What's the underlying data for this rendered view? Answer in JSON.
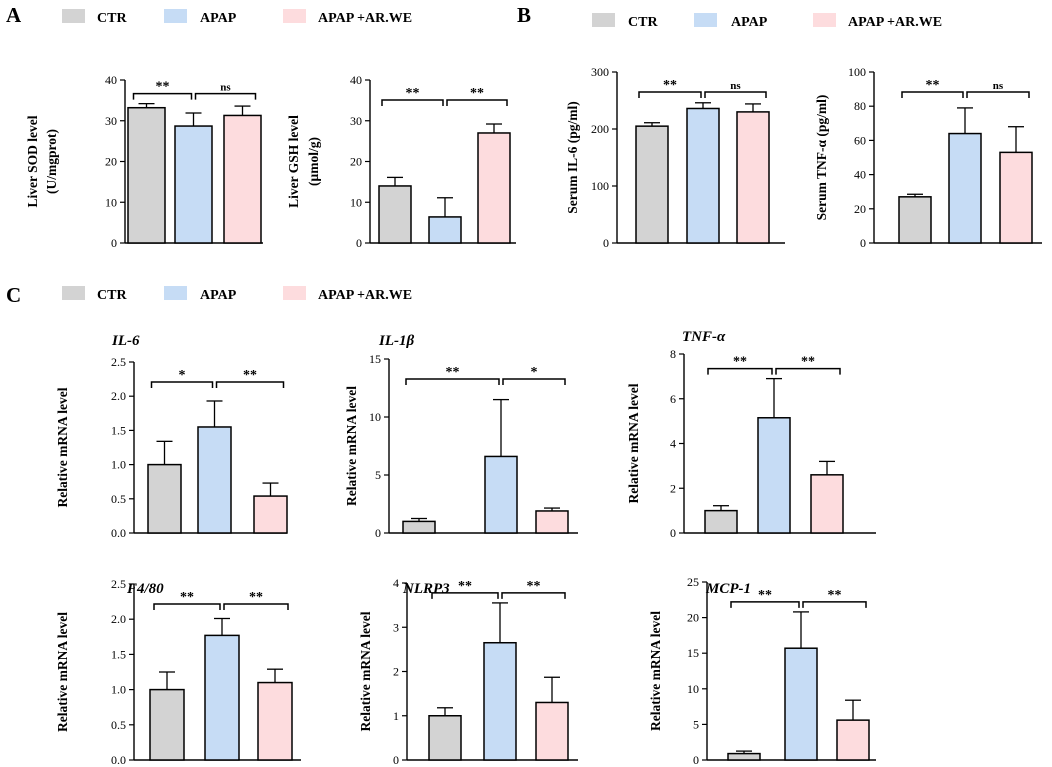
{
  "panel_labels": [
    "A",
    "B",
    "C"
  ],
  "legend": {
    "items": [
      {
        "label": "CTR",
        "color": "#d3d3d3"
      },
      {
        "label": "APAP",
        "color": "#c6dcf5"
      },
      {
        "label": "APAP +AR.WE",
        "color": "#fddcde"
      }
    ]
  },
  "colors": {
    "ctr": "#d3d3d3",
    "apap": "#c6dcf5",
    "arwe": "#fddcde",
    "stroke": "#000000"
  },
  "chart_data": [
    {
      "id": "sod",
      "type": "bar",
      "title": "",
      "ylabel": [
        "Liver SOD level",
        "(U/mgprot)"
      ],
      "categories": [
        "CTR",
        "APAP",
        "APAP +AR.WE"
      ],
      "values": [
        33.2,
        28.7,
        31.3
      ],
      "errors": [
        1.0,
        3.2,
        2.3
      ],
      "ylim": [
        0,
        40
      ],
      "yticks": [
        "0",
        "10",
        "20",
        "30",
        "40"
      ],
      "comparisons": [
        {
          "from": 0,
          "to": 1,
          "label": "**"
        },
        {
          "from": 1,
          "to": 2,
          "label": "ns"
        }
      ]
    },
    {
      "id": "gsh",
      "type": "bar",
      "title": "",
      "ylabel": [
        "Liver GSH level",
        "(μmol/g)"
      ],
      "categories": [
        "CTR",
        "APAP",
        "APAP +AR.WE"
      ],
      "values": [
        14.0,
        6.4,
        27.0
      ],
      "errors": [
        2.1,
        4.7,
        2.2
      ],
      "ylim": [
        0,
        40
      ],
      "yticks": [
        "0",
        "10",
        "20",
        "30",
        "40"
      ],
      "comparisons": [
        {
          "from": 0,
          "to": 1,
          "label": "**"
        },
        {
          "from": 1,
          "to": 2,
          "label": "**"
        }
      ]
    },
    {
      "id": "il6_serum",
      "type": "bar",
      "title": "",
      "ylabel": [
        "Serum IL-6 (pg/ml)"
      ],
      "categories": [
        "CTR",
        "APAP",
        "APAP +AR.WE"
      ],
      "values": [
        205,
        236,
        230
      ],
      "errors": [
        6,
        10,
        14
      ],
      "ylim": [
        0,
        300
      ],
      "yticks": [
        "0",
        "100",
        "200",
        "300"
      ],
      "comparisons": [
        {
          "from": 0,
          "to": 1,
          "label": "**"
        },
        {
          "from": 1,
          "to": 2,
          "label": "ns"
        }
      ]
    },
    {
      "id": "tnf_serum",
      "type": "bar",
      "title": "",
      "ylabel": [
        "Serum TNF-α (pg/ml)"
      ],
      "categories": [
        "CTR",
        "APAP",
        "APAP +AR.WE"
      ],
      "values": [
        27,
        64,
        53
      ],
      "errors": [
        1.5,
        15,
        15
      ],
      "ylim": [
        0,
        100
      ],
      "yticks": [
        "0",
        "20",
        "40",
        "60",
        "80",
        "100"
      ],
      "comparisons": [
        {
          "from": 0,
          "to": 1,
          "label": "**"
        },
        {
          "from": 1,
          "to": 2,
          "label": "ns"
        }
      ]
    },
    {
      "id": "il6_mrna",
      "type": "bar",
      "title": "IL-6",
      "ylabel": [
        "Relative mRNA level"
      ],
      "categories": [
        "CTR",
        "APAP",
        "APAP +AR.WE"
      ],
      "values": [
        1.0,
        1.55,
        0.54
      ],
      "errors": [
        0.34,
        0.38,
        0.19
      ],
      "ylim": [
        0,
        2.5
      ],
      "yticks": [
        "0.0",
        "0.5",
        "1.0",
        "1.5",
        "2.0",
        "2.5"
      ],
      "comparisons": [
        {
          "from": 0,
          "to": 1,
          "label": "*"
        },
        {
          "from": 1,
          "to": 2,
          "label": "**"
        }
      ]
    },
    {
      "id": "il1b_mrna",
      "type": "bar",
      "title": "IL-1β",
      "ylabel": [
        "Relative mRNA level"
      ],
      "categories": [
        "CTR",
        "APAP",
        "APAP +AR.WE"
      ],
      "values": [
        1.0,
        6.6,
        1.9
      ],
      "errors": [
        0.25,
        4.9,
        0.25
      ],
      "ylim": [
        0,
        15
      ],
      "yticks": [
        "0",
        "5",
        "10",
        "15"
      ],
      "comparisons": [
        {
          "from": 0,
          "to": 1,
          "label": "**"
        },
        {
          "from": 1,
          "to": 2,
          "label": "*"
        }
      ]
    },
    {
      "id": "tnfa_mrna",
      "type": "bar",
      "title": "TNF-α",
      "ylabel": [
        "Relative mRNA level"
      ],
      "categories": [
        "CTR",
        "APAP",
        "APAP +AR.WE"
      ],
      "values": [
        1.0,
        5.15,
        2.6
      ],
      "errors": [
        0.22,
        1.75,
        0.6
      ],
      "ylim": [
        0,
        8
      ],
      "yticks": [
        "0",
        "2",
        "4",
        "6",
        "8"
      ],
      "comparisons": [
        {
          "from": 0,
          "to": 1,
          "label": "**"
        },
        {
          "from": 1,
          "to": 2,
          "label": "**"
        }
      ]
    },
    {
      "id": "f480_mrna",
      "type": "bar",
      "title": "F4/80",
      "ylabel": [
        "Relative mRNA level"
      ],
      "categories": [
        "CTR",
        "APAP",
        "APAP +AR.WE"
      ],
      "values": [
        1.0,
        1.77,
        1.1
      ],
      "errors": [
        0.25,
        0.24,
        0.19
      ],
      "ylim": [
        0,
        2.5
      ],
      "yticks": [
        "0.0",
        "0.5",
        "1.0",
        "1.5",
        "2.0",
        "2.5"
      ],
      "comparisons": [
        {
          "from": 0,
          "to": 1,
          "label": "**"
        },
        {
          "from": 1,
          "to": 2,
          "label": "**"
        }
      ]
    },
    {
      "id": "nlrp3_mrna",
      "type": "bar",
      "title": "NLRP3",
      "ylabel": [
        "Relative mRNA level"
      ],
      "categories": [
        "CTR",
        "APAP",
        "APAP +AR.WE"
      ],
      "values": [
        1.0,
        2.65,
        1.3
      ],
      "errors": [
        0.18,
        0.9,
        0.57
      ],
      "ylim": [
        0,
        4
      ],
      "yticks": [
        "0",
        "1",
        "2",
        "3",
        "4"
      ],
      "comparisons": [
        {
          "from": 0,
          "to": 1,
          "label": "**"
        },
        {
          "from": 1,
          "to": 2,
          "label": "**"
        }
      ]
    },
    {
      "id": "mcp1_mrna",
      "type": "bar",
      "title": "MCP-1",
      "ylabel": [
        "Relative mRNA level"
      ],
      "categories": [
        "CTR",
        "APAP",
        "APAP +AR.WE"
      ],
      "values": [
        0.9,
        15.7,
        5.6
      ],
      "errors": [
        0.35,
        5.1,
        2.8
      ],
      "ylim": [
        0,
        25
      ],
      "yticks": [
        "0",
        "5",
        "10",
        "15",
        "20",
        "25"
      ],
      "comparisons": [
        {
          "from": 0,
          "to": 1,
          "label": "**"
        },
        {
          "from": 1,
          "to": 2,
          "label": "**"
        }
      ]
    }
  ]
}
